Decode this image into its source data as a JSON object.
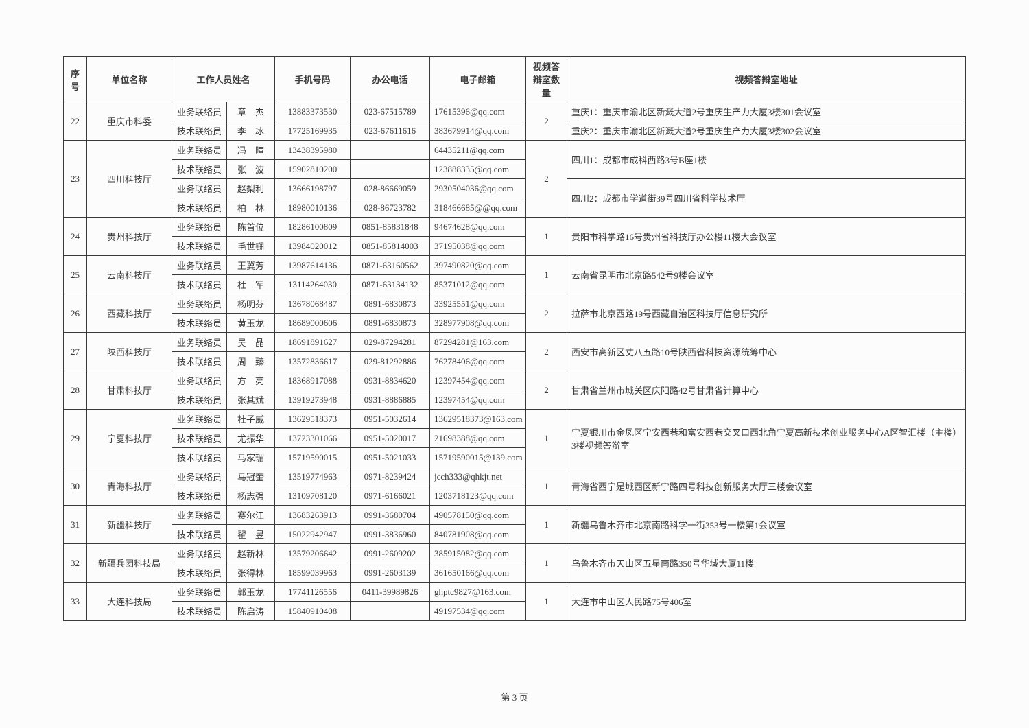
{
  "page_label": "第 3 页",
  "headers": {
    "seq": "序号",
    "org": "单位名称",
    "staff": "工作人员姓名",
    "phone": "手机号码",
    "tel": "办公电话",
    "email": "电子邮箱",
    "rooms": "视频答辩室数量",
    "addr": "视频答辩室地址"
  },
  "rows": [
    {
      "seq": "22",
      "org": "重庆市科委",
      "rooms": "2",
      "addr": [
        "重庆1：重庆市渝北区新溉大道2号重庆生产力大厦3楼301会议室",
        "重庆2：重庆市渝北区新溉大道2号重庆生产力大厦3楼302会议室"
      ],
      "staff": [
        {
          "role": "业务联络员",
          "name": "章　杰",
          "phone": "13883373530",
          "tel": "023-67515789",
          "email": "17615396@qq.com"
        },
        {
          "role": "技术联络员",
          "name": "李　冰",
          "phone": "17725169935",
          "tel": "023-67611616",
          "email": "383679914@qq.com"
        }
      ]
    },
    {
      "seq": "23",
      "org": "四川科技厅",
      "rooms": "2",
      "addr": [
        "四川1：成都市成科西路3号B座1楼",
        "四川2：成都市学道街39号四川省科学技术厅"
      ],
      "staff": [
        {
          "role": "业务联络员",
          "name": "冯　暄",
          "phone": "13438395980",
          "tel": "",
          "email": "64435211@qq.com"
        },
        {
          "role": "技术联络员",
          "name": "张　波",
          "phone": "15902810200",
          "tel": "",
          "email": "123888335@qq.com"
        },
        {
          "role": "业务联络员",
          "name": "赵梨利",
          "phone": "13666198797",
          "tel": "028-86669059",
          "email": "2930504036@qq.com"
        },
        {
          "role": "技术联络员",
          "name": "柏　林",
          "phone": "18980010136",
          "tel": "028-86723782",
          "email": "318466685@@qq.com"
        }
      ]
    },
    {
      "seq": "24",
      "org": "贵州科技厅",
      "rooms": "1",
      "addr": [
        "贵阳市科学路16号贵州省科技厅办公楼11楼大会议室"
      ],
      "staff": [
        {
          "role": "业务联络员",
          "name": "陈首位",
          "phone": "18286100809",
          "tel": "0851-85831848",
          "email": "94674628@qq.com"
        },
        {
          "role": "技术联络员",
          "name": "毛世锎",
          "phone": "13984020012",
          "tel": "0851-85814003",
          "email": "37195038@qq.com"
        }
      ]
    },
    {
      "seq": "25",
      "org": "云南科技厅",
      "rooms": "1",
      "addr": [
        "云南省昆明市北京路542号9楼会议室"
      ],
      "staff": [
        {
          "role": "业务联络员",
          "name": "王冀芳",
          "phone": "13987614136",
          "tel": "0871-63160562",
          "email": "397490820@qq.com"
        },
        {
          "role": "技术联络员",
          "name": "杜　军",
          "phone": "13114264030",
          "tel": "0871-63134132",
          "email": "85371012@qq.com"
        }
      ]
    },
    {
      "seq": "26",
      "org": "西藏科技厅",
      "rooms": "2",
      "addr": [
        "拉萨市北京西路19号西藏自治区科技厅信息研究所"
      ],
      "staff": [
        {
          "role": "业务联络员",
          "name": "杨明芬",
          "phone": "13678068487",
          "tel": "0891-6830873",
          "email": "33925551@qq.com"
        },
        {
          "role": "技术联络员",
          "name": "黄玉龙",
          "phone": "18689000606",
          "tel": "0891-6830873",
          "email": "328977908@qq.com"
        }
      ]
    },
    {
      "seq": "27",
      "org": "陕西科技厅",
      "rooms": "2",
      "addr": [
        "西安市高新区丈八五路10号陕西省科技资源统筹中心"
      ],
      "staff": [
        {
          "role": "业务联络员",
          "name": "吴　晶",
          "phone": "18691891627",
          "tel": "029-87294281",
          "email": "87294281@163.com"
        },
        {
          "role": "技术联络员",
          "name": "周　臻",
          "phone": "13572836617",
          "tel": "029-81292886",
          "email": "76278406@qq.com"
        }
      ]
    },
    {
      "seq": "28",
      "org": "甘肃科技厅",
      "rooms": "2",
      "addr": [
        "甘肃省兰州市城关区庆阳路42号甘肃省计算中心"
      ],
      "staff": [
        {
          "role": "业务联络员",
          "name": "方　亮",
          "phone": "18368917088",
          "tel": "0931-8834620",
          "email": "12397454@qq.com"
        },
        {
          "role": "技术联络员",
          "name": "张其斌",
          "phone": "13919273948",
          "tel": "0931-8886885",
          "email": "12397454@qq.com"
        }
      ]
    },
    {
      "seq": "29",
      "org": "宁夏科技厅",
      "rooms": "1",
      "addr": [
        "宁夏银川市金凤区宁安西巷和富安西巷交叉口西北角宁夏高新技术创业服务中心A区智汇楼（主楼）3楼视频答辩室"
      ],
      "staff": [
        {
          "role": "业务联络员",
          "name": "杜子威",
          "phone": "13629518373",
          "tel": "0951-5032614",
          "email": "13629518373@163.com"
        },
        {
          "role": "技术联络员",
          "name": "尤振华",
          "phone": "13723301066",
          "tel": "0951-5020017",
          "email": "21698388@qq.com"
        },
        {
          "role": "技术联络员",
          "name": "马家瑂",
          "phone": "15719590015",
          "tel": "0951-5021033",
          "email": "15719590015@139.com"
        }
      ]
    },
    {
      "seq": "30",
      "org": "青海科技厅",
      "rooms": "1",
      "addr": [
        "青海省西宁是城西区新宁路四号科技创新服务大厅三楼会议室"
      ],
      "staff": [
        {
          "role": "业务联络员",
          "name": "马冠奎",
          "phone": "13519774963",
          "tel": "0971-8239424",
          "email": "jcch333@qhkjt.net"
        },
        {
          "role": "技术联络员",
          "name": "杨志强",
          "phone": "13109708120",
          "tel": "0971-6166021",
          "email": "1203718123@qq.com"
        }
      ]
    },
    {
      "seq": "31",
      "org": "新疆科技厅",
      "rooms": "1",
      "addr": [
        "新疆乌鲁木齐市北京南路科学一街353号一楼第1会议室"
      ],
      "staff": [
        {
          "role": "业务联络员",
          "name": "赛尔江",
          "phone": "13683263913",
          "tel": "0991-3680704",
          "email": "490578150@qq.com"
        },
        {
          "role": "技术联络员",
          "name": "翟　昱",
          "phone": "15022942947",
          "tel": "0991-3836960",
          "email": "840781908@qq.com"
        }
      ]
    },
    {
      "seq": "32",
      "org": "新疆兵团科技局",
      "rooms": "1",
      "addr": [
        "乌鲁木齐市天山区五星南路350号华域大厦11楼"
      ],
      "staff": [
        {
          "role": "业务联络员",
          "name": "赵新林",
          "phone": "13579206642",
          "tel": "0991-2609202",
          "email": "385915082@qq.com"
        },
        {
          "role": "技术联络员",
          "name": "张得林",
          "phone": "18599039963",
          "tel": "0991-2603139",
          "email": "361650166@qq.com"
        }
      ]
    },
    {
      "seq": "33",
      "org": "大连科技局",
      "rooms": "1",
      "addr": [
        "大连市中山区人民路75号406室"
      ],
      "staff": [
        {
          "role": "业务联络员",
          "name": "郭玉龙",
          "phone": "17741126556",
          "tel": "0411-39989826",
          "email": "ghptc9827@163.com"
        },
        {
          "role": "技术联络员",
          "name": "陈启涛",
          "phone": "15840910408",
          "tel": "",
          "email": "49197534@qq.com"
        }
      ]
    }
  ]
}
